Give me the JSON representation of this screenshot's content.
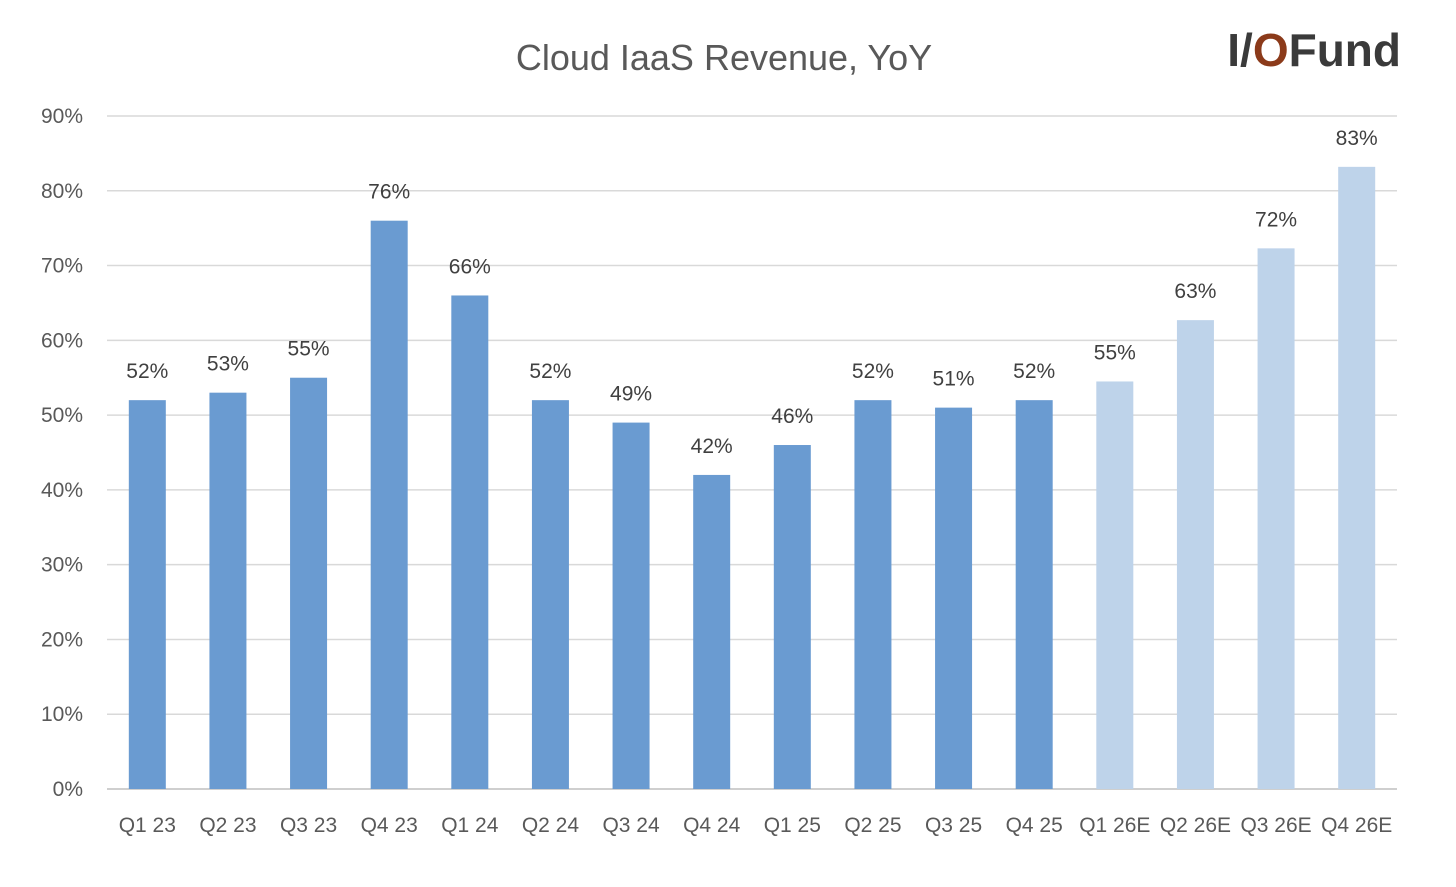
{
  "logo": {
    "text": "I/OFund",
    "prefix": "I/",
    "mark": "O",
    "suffix": "Fund",
    "colors": {
      "dark": "#3a3a3a",
      "accent": "#8b3a1a"
    }
  },
  "chart_data": {
    "type": "bar",
    "title": "Cloud IaaS Revenue, YoY",
    "xlabel": "",
    "ylabel": "",
    "ylim": [
      0,
      90
    ],
    "yticks": [
      0,
      10,
      20,
      30,
      40,
      50,
      60,
      70,
      80,
      90
    ],
    "ytick_labels": [
      "0%",
      "10%",
      "20%",
      "30%",
      "40%",
      "50%",
      "60%",
      "70%",
      "80%",
      "90%"
    ],
    "grid": true,
    "legend": "none",
    "categories": [
      "Q1 23",
      "Q2 23",
      "Q3 23",
      "Q4 23",
      "Q1 24",
      "Q2 24",
      "Q3 24",
      "Q4 24",
      "Q1 25",
      "Q2 25",
      "Q3 25",
      "Q4 25",
      "Q1 26E",
      "Q2 26E",
      "Q3 26E",
      "Q4 26E"
    ],
    "values": [
      52,
      53,
      55,
      76,
      66,
      52,
      49,
      42,
      46,
      52,
      51,
      52,
      54.5,
      62.7,
      72.3,
      83.2
    ],
    "data_labels": [
      "52%",
      "53%",
      "55%",
      "76%",
      "66%",
      "52%",
      "49%",
      "42%",
      "46%",
      "52%",
      "51%",
      "52%",
      "55%",
      "63%",
      "72%",
      "83%"
    ],
    "estimate": [
      false,
      false,
      false,
      false,
      false,
      false,
      false,
      false,
      false,
      false,
      false,
      false,
      true,
      true,
      true,
      true
    ],
    "colors": {
      "actual": "#6a9bd1",
      "estimate": "#bed3ea",
      "grid": "#d9d9d9",
      "axis": "#bfbfbf"
    }
  }
}
